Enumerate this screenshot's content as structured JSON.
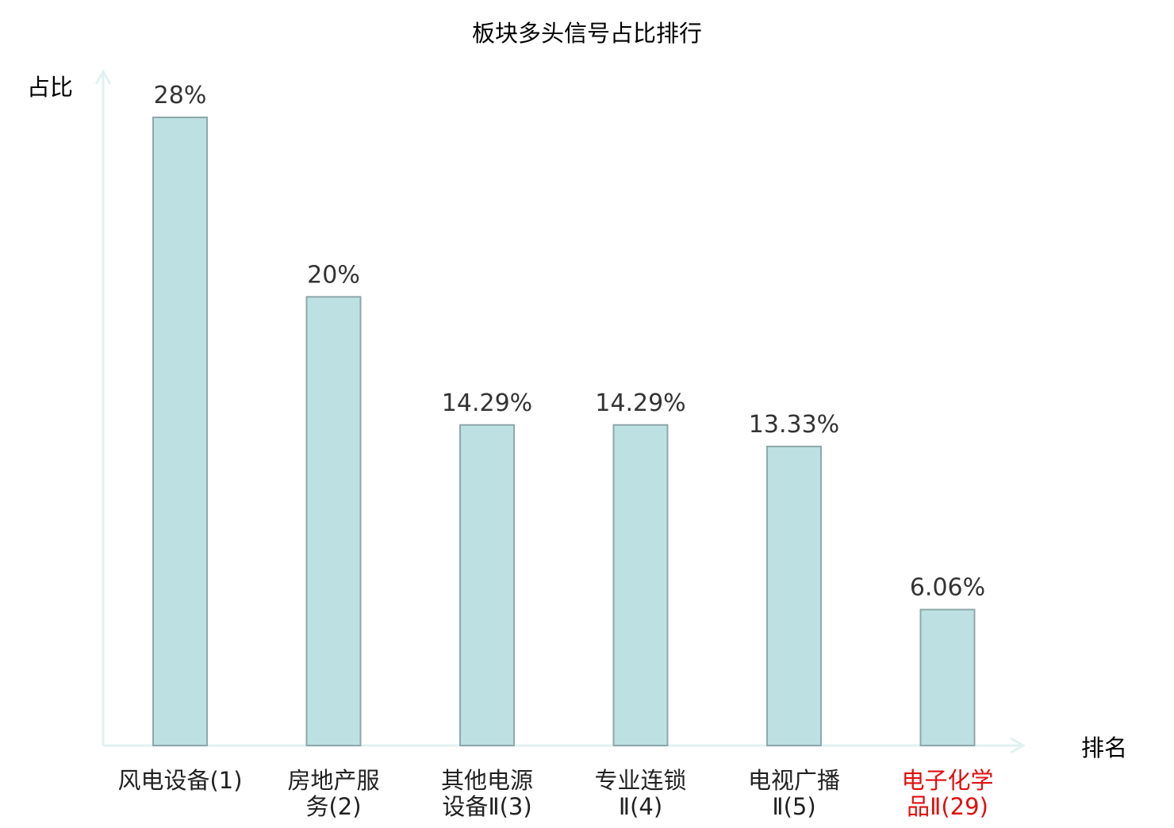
{
  "chart_data": {
    "type": "bar",
    "title": "板块多头信号占比排行",
    "ylabel": "占比",
    "xlabel": "排名",
    "ylim": [
      0,
      30
    ],
    "grid": false,
    "categories": [
      [
        "风电设备(1)"
      ],
      [
        "房地产服",
        "务(2)"
      ],
      [
        "其他电源",
        "设备Ⅱ(3)"
      ],
      [
        "专业连锁",
        "Ⅱ(4)"
      ],
      [
        "电视广播",
        "Ⅱ(5)"
      ],
      [
        "电子化学",
        "品Ⅱ(29)"
      ]
    ],
    "values": [
      28,
      20,
      14.29,
      14.29,
      13.33,
      6.06
    ],
    "value_labels": [
      "28%",
      "20%",
      "14.29%",
      "14.29%",
      "13.33%",
      "6.06%"
    ],
    "highlight_index": 5,
    "colors": {
      "bar_fill": "#bde0e3",
      "bar_stroke": "#8ea8aa",
      "axis": "#e0f2f0",
      "text": "#222222",
      "value_text": "#333333",
      "highlight_text": "#e01010"
    }
  }
}
